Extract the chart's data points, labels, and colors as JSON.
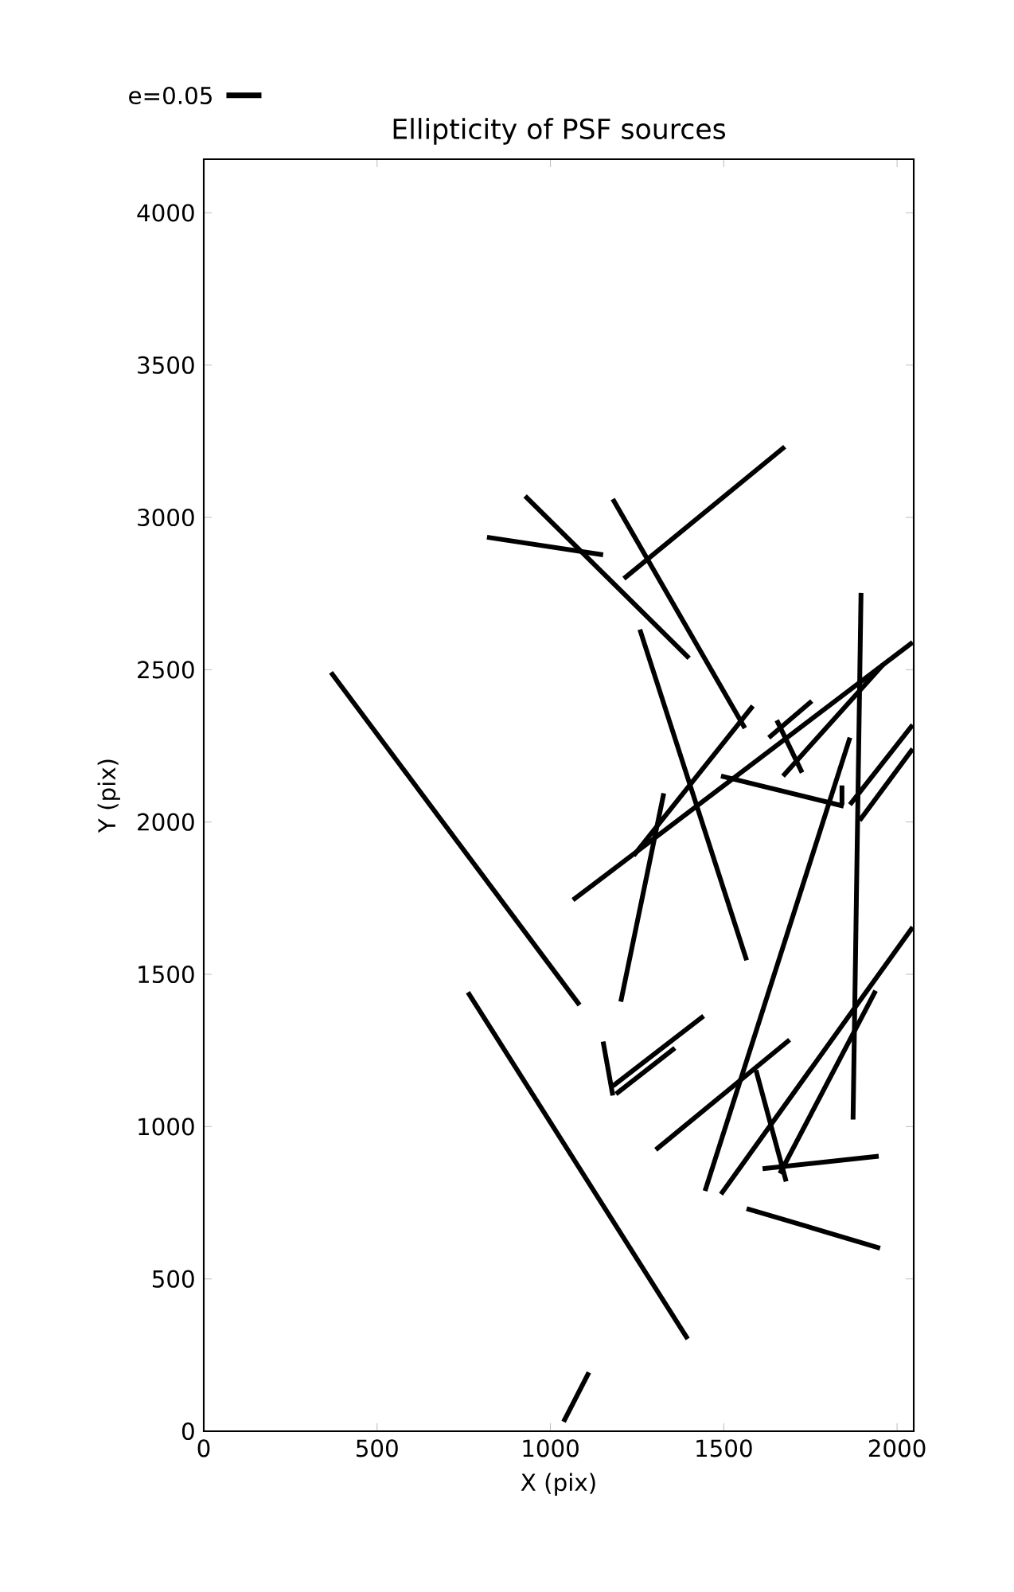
{
  "chart_data": {
    "type": "line",
    "title": "Ellipticity of PSF sources",
    "xlabel": "X (pix)",
    "ylabel": "Y (pix)",
    "annotations": [
      "e=0.05"
    ],
    "xlim": [
      0,
      2048
    ],
    "ylim": [
      0,
      4176
    ],
    "xticks": [
      0,
      500,
      1000,
      1500,
      2000
    ],
    "yticks": [
      0,
      500,
      1000,
      1500,
      2000,
      2500,
      3000,
      3500,
      4000
    ],
    "series": [
      {
        "color": "#000000",
        "x": [
          367,
          1084
        ],
        "values": [
          2491,
          1399
        ]
      },
      {
        "color": "#000000",
        "x": [
          762,
          1396
        ],
        "values": [
          1441,
          303
        ]
      },
      {
        "color": "#000000",
        "x": [
          1038,
          1111
        ],
        "values": [
          31,
          193
        ]
      },
      {
        "color": "#000000",
        "x": [
          817,
          1152
        ],
        "values": [
          2935,
          2877
        ]
      },
      {
        "color": "#000000",
        "x": [
          927,
          1400
        ],
        "values": [
          3070,
          2538
        ]
      },
      {
        "color": "#000000",
        "x": [
          1180,
          1561
        ],
        "values": [
          3060,
          2308
        ]
      },
      {
        "color": "#000000",
        "x": [
          1212,
          1676
        ],
        "values": [
          2799,
          3232
        ]
      },
      {
        "color": "#000000",
        "x": [
          1258,
          1566
        ],
        "values": [
          2632,
          1546
        ]
      },
      {
        "color": "#000000",
        "x": [
          1203,
          1327
        ],
        "values": [
          1410,
          2094
        ]
      },
      {
        "color": "#000000",
        "x": [
          1065,
          2045
        ],
        "values": [
          1744,
          2590
        ]
      },
      {
        "color": "#000000",
        "x": [
          1240,
          1584
        ],
        "values": [
          1890,
          2381
        ]
      },
      {
        "color": "#000000",
        "x": [
          1671,
          1960
        ],
        "values": [
          2151,
          2517
        ]
      },
      {
        "color": "#000000",
        "x": [
          1630,
          1754
        ],
        "values": [
          2277,
          2397
        ]
      },
      {
        "color": "#000000",
        "x": [
          1653,
          1726
        ],
        "values": [
          2334,
          2162
        ]
      },
      {
        "color": "#000000",
        "x": [
          1492,
          1846
        ],
        "values": [
          2151,
          2052
        ]
      },
      {
        "color": "#000000",
        "x": [
          1841,
          1841
        ],
        "values": [
          2120,
          2057
        ]
      },
      {
        "color": "#000000",
        "x": [
          1896,
          1873
        ],
        "values": [
          2752,
          1023
        ]
      },
      {
        "color": "#000000",
        "x": [
          1864,
          2045
        ],
        "values": [
          2057,
          2319
        ]
      },
      {
        "color": "#000000",
        "x": [
          1892,
          2045
        ],
        "values": [
          2005,
          2240
        ]
      },
      {
        "color": "#000000",
        "x": [
          1446,
          1864
        ],
        "values": [
          789,
          2277
        ]
      },
      {
        "color": "#000000",
        "x": [
          1492,
          2045
        ],
        "values": [
          778,
          1655
        ]
      },
      {
        "color": "#000000",
        "x": [
          1662,
          1938
        ],
        "values": [
          846,
          1446
        ]
      },
      {
        "color": "#000000",
        "x": [
          1304,
          1690
        ],
        "values": [
          924,
          1285
        ]
      },
      {
        "color": "#000000",
        "x": [
          1593,
          1680
        ],
        "values": [
          1185,
          820
        ]
      },
      {
        "color": "#000000",
        "x": [
          1612,
          1947
        ],
        "values": [
          862,
          903
        ]
      },
      {
        "color": "#000000",
        "x": [
          1566,
          1951
        ],
        "values": [
          731,
          601
        ]
      },
      {
        "color": "#000000",
        "x": [
          1152,
          1180
        ],
        "values": [
          1279,
          1102
        ]
      },
      {
        "color": "#000000",
        "x": [
          1180,
          1442
        ],
        "values": [
          1133,
          1363
        ]
      },
      {
        "color": "#000000",
        "x": [
          1189,
          1359
        ],
        "values": [
          1107,
          1258
        ]
      }
    ]
  }
}
